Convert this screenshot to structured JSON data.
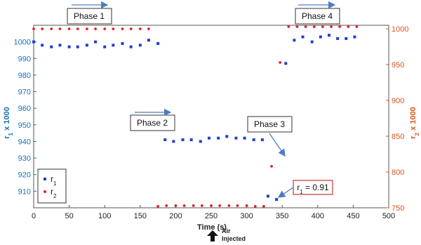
{
  "chart_data": {
    "type": "scatter",
    "xlabel": "Time (s)",
    "ylabel_left": "r1 x 1000",
    "ylabel_right": "r2 x 1000",
    "xlim": [
      0,
      500
    ],
    "ylim_left": [
      900,
      1010
    ],
    "ylim_right": [
      750,
      1005
    ],
    "x_ticks": [
      0,
      50,
      100,
      150,
      200,
      250,
      300,
      350,
      400,
      450,
      500
    ],
    "y_left_ticks": [
      910,
      920,
      930,
      940,
      950,
      960,
      970,
      980,
      990,
      1000
    ],
    "y_right_ticks": [
      750,
      800,
      850,
      900,
      950,
      1000
    ],
    "grid": false,
    "legend_position": "bottom-left",
    "series": [
      {
        "name": "r1",
        "axis": "left",
        "color": "#1c3fd1",
        "marker": "square",
        "x": [
          0,
          12,
          25,
          37,
          50,
          62,
          75,
          87,
          100,
          112,
          125,
          137,
          150,
          162,
          175,
          185,
          197,
          210,
          222,
          235,
          247,
          260,
          272,
          285,
          297,
          310,
          322,
          330,
          342,
          355,
          367,
          379,
          392,
          404,
          416,
          428,
          440,
          452
        ],
        "y": [
          1000,
          998,
          997,
          998,
          997,
          997,
          998,
          1000,
          997,
          998,
          999,
          997,
          998,
          1001,
          999,
          941,
          940,
          941,
          941,
          940,
          942,
          942,
          943,
          942,
          942,
          941,
          941,
          907,
          905,
          987,
          1001,
          1003,
          1000,
          1003,
          1004,
          1002,
          1002,
          1003
        ]
      },
      {
        "name": "r2",
        "axis": "right",
        "color": "#e8212a",
        "marker": "circle",
        "x": [
          0,
          12,
          25,
          37,
          50,
          62,
          75,
          87,
          100,
          112,
          125,
          137,
          150,
          162,
          175,
          187,
          200,
          212,
          225,
          237,
          250,
          262,
          275,
          287,
          300,
          312,
          324,
          335,
          347,
          359,
          371,
          383,
          395,
          407,
          419,
          431,
          443,
          455
        ],
        "y": [
          1000,
          1000,
          1000,
          1000,
          1000,
          1000,
          1000,
          1000,
          1000,
          1000,
          1000,
          1000,
          1000,
          1000,
          752,
          753,
          753,
          753,
          753,
          753,
          753,
          753,
          753,
          753,
          753,
          752,
          752,
          808,
          953,
          1003,
          1003,
          1003,
          1003,
          1003,
          1003,
          1003,
          1003,
          1003
        ]
      }
    ],
    "annotations": {
      "phase1": "Phase 1",
      "phase2": "Phase 2",
      "phase3": "Phase 3",
      "phase4": "Phase 4",
      "r1_callout": "r1 = 0.91",
      "air_injected_line1": "Air",
      "air_injected_line2": "Injected"
    },
    "legend": [
      {
        "label": "r",
        "sub": "1"
      },
      {
        "label": "r",
        "sub": "2"
      }
    ]
  }
}
